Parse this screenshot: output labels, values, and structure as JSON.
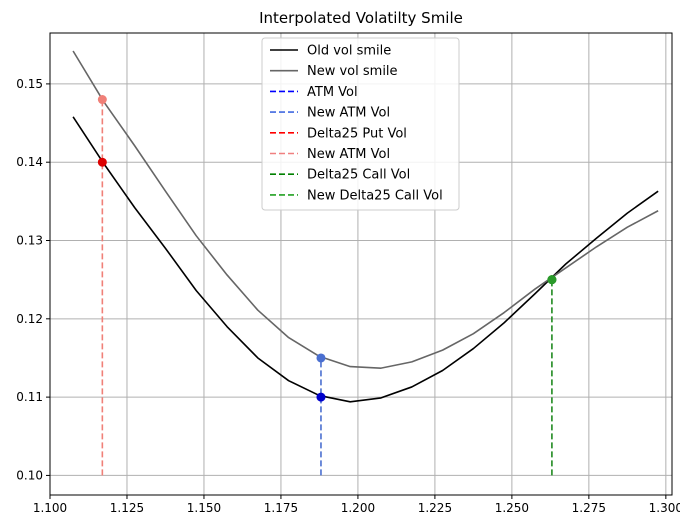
{
  "chart_data": {
    "type": "line",
    "title": "Interpolated Volatilty Smile",
    "xlabel": "",
    "ylabel": "",
    "xlim": [
      1.1,
      1.302
    ],
    "ylim": [
      0.0975,
      0.1565
    ],
    "grid": true,
    "legend_position": "top-center",
    "x_ticks": [
      "1.100",
      "1.125",
      "1.150",
      "1.175",
      "1.200",
      "1.225",
      "1.250",
      "1.275",
      "1.300"
    ],
    "x_tick_values": [
      1.1,
      1.125,
      1.15,
      1.175,
      1.2,
      1.225,
      1.25,
      1.275,
      1.3
    ],
    "y_ticks": [
      "0.10",
      "0.11",
      "0.12",
      "0.13",
      "0.14",
      "0.15"
    ],
    "y_tick_values": [
      0.1,
      0.11,
      0.12,
      0.13,
      0.14,
      0.15
    ],
    "x": [
      1.1075,
      1.1175,
      1.1275,
      1.1375,
      1.1475,
      1.1575,
      1.1675,
      1.1775,
      1.1875,
      1.1975,
      1.2075,
      1.2175,
      1.2275,
      1.2375,
      1.2475,
      1.2575,
      1.2675,
      1.2775,
      1.2875,
      1.2975
    ],
    "series": [
      {
        "name": "Old vol smile",
        "color": "#000000",
        "values": [
          0.1458,
          0.1398,
          0.1342,
          0.129,
          0.1236,
          0.119,
          0.115,
          0.1121,
          0.1102,
          0.1094,
          0.1099,
          0.1113,
          0.1134,
          0.1162,
          0.1195,
          0.1232,
          0.127,
          0.1303,
          0.1335,
          0.1363
        ]
      },
      {
        "name": "New vol smile",
        "color": "#666666",
        "values": [
          0.1542,
          0.1477,
          0.1421,
          0.1363,
          0.1306,
          0.1256,
          0.1211,
          0.1176,
          0.1152,
          0.1139,
          0.1137,
          0.1145,
          0.116,
          0.1181,
          0.1208,
          0.1238,
          0.1265,
          0.1292,
          0.1317,
          0.1338
        ]
      }
    ],
    "markers": [
      {
        "name": "ATM Vol",
        "color": "#0000cc",
        "x": 1.188,
        "y": 0.11
      },
      {
        "name": "New ATM Vol",
        "color": "#4a6fd0",
        "x": 1.188,
        "y": 0.115
      },
      {
        "name": "Delta25 Put Vol",
        "color": "#dd0000",
        "x": 1.117,
        "y": 0.14
      },
      {
        "name": "New ATM Vol",
        "color": "#f08078",
        "x": 1.117,
        "y": 0.148
      },
      {
        "name": "Delta25 Call Vol",
        "color": "#008000",
        "x": 1.263,
        "y": 0.125
      },
      {
        "name": "New Delta25 Call Vol",
        "color": "#2a9a2a",
        "x": 1.263,
        "y": 0.125
      }
    ],
    "vlines": [
      {
        "x": 1.188,
        "y_from": 0.1,
        "y_to": 0.115,
        "color": "#4a6fd0"
      },
      {
        "x": 1.117,
        "y_from": 0.1,
        "y_to": 0.148,
        "color": "#f08078"
      },
      {
        "x": 1.263,
        "y_from": 0.1,
        "y_to": 0.125,
        "color": "#1f8a1f"
      }
    ],
    "legend": [
      {
        "label": "Old vol smile",
        "color": "#000000",
        "style": "solid"
      },
      {
        "label": "New vol smile",
        "color": "#666666",
        "style": "solid"
      },
      {
        "label": "ATM Vol",
        "color": "#0000ff",
        "style": "dashed"
      },
      {
        "label": "New ATM Vol",
        "color": "#4169e1",
        "style": "dashed"
      },
      {
        "label": "Delta25 Put Vol",
        "color": "#ff0000",
        "style": "dashed"
      },
      {
        "label": "New ATM Vol",
        "color": "#f08080",
        "style": "dashed"
      },
      {
        "label": "Delta25 Call Vol",
        "color": "#008000",
        "style": "dashed"
      },
      {
        "label": "New Delta25 Call Vol",
        "color": "#22a022",
        "style": "dashed"
      }
    ]
  }
}
